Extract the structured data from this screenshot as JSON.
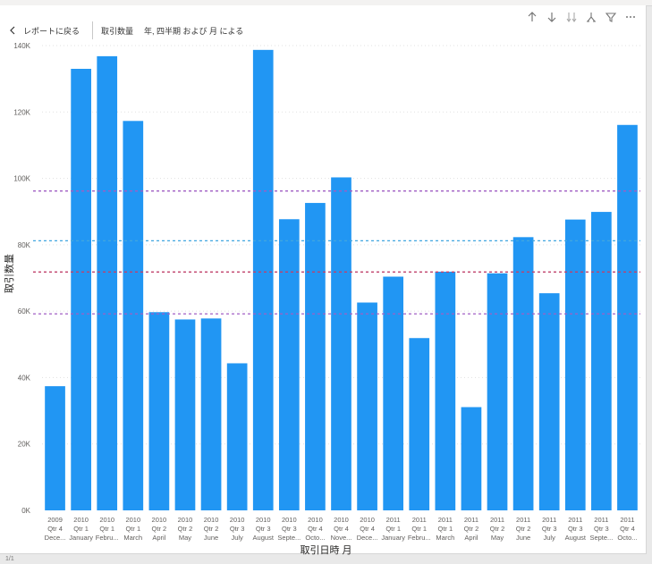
{
  "toolbar": {
    "back_label": "レポートに戻る",
    "crumb_1": "取引数量",
    "crumb_2": "年, 四半期 および 月 による"
  },
  "footer": {
    "page": "1/1"
  },
  "colors": {
    "bar": "#2196f3",
    "ref_purple": "#a05ec4",
    "ref_red": "#c0416b",
    "ref_blue": "#41a6e0",
    "grid": "#e1e1e1"
  },
  "icons": [
    "arrow-up-icon",
    "arrow-down-icon",
    "double-arrow-down-icon",
    "fork-icon",
    "filter-icon",
    "more-icon"
  ],
  "chart_data": {
    "type": "bar",
    "xlabel": "取引日時 月",
    "ylabel": "取引数量",
    "ylim": [
      0,
      140000
    ],
    "yticks": [
      "0K",
      "20K",
      "40K",
      "60K",
      "80K",
      "100K",
      "120K",
      "140K"
    ],
    "categories": [
      [
        "2009",
        "Qtr 4",
        "Dece..."
      ],
      [
        "2010",
        "Qtr 1",
        "January"
      ],
      [
        "2010",
        "Qtr 1",
        "Febru..."
      ],
      [
        "2010",
        "Qtr 1",
        "March"
      ],
      [
        "2010",
        "Qtr 2",
        "April"
      ],
      [
        "2010",
        "Qtr 2",
        "May"
      ],
      [
        "2010",
        "Qtr 2",
        "June"
      ],
      [
        "2010",
        "Qtr 3",
        "July"
      ],
      [
        "2010",
        "Qtr 3",
        "August"
      ],
      [
        "2010",
        "Qtr 3",
        "Septe..."
      ],
      [
        "2010",
        "Qtr 4",
        "Octo..."
      ],
      [
        "2010",
        "Qtr 4",
        "Nove..."
      ],
      [
        "2010",
        "Qtr 4",
        "Dece..."
      ],
      [
        "2011",
        "Qtr 1",
        "January"
      ],
      [
        "2011",
        "Qtr 1",
        "Febru..."
      ],
      [
        "2011",
        "Qtr 1",
        "March"
      ],
      [
        "2011",
        "Qtr 2",
        "April"
      ],
      [
        "2011",
        "Qtr 2",
        "May"
      ],
      [
        "2011",
        "Qtr 2",
        "June"
      ],
      [
        "2011",
        "Qtr 3",
        "July"
      ],
      [
        "2011",
        "Qtr 3",
        "August"
      ],
      [
        "2011",
        "Qtr 3",
        "Septe..."
      ],
      [
        "2011",
        "Qtr 4",
        "Octo..."
      ]
    ],
    "values": [
      37400,
      133000,
      136800,
      117300,
      59700,
      57500,
      57800,
      44300,
      138700,
      87700,
      92600,
      100300,
      62600,
      70400,
      51900,
      71900,
      31100,
      71400,
      82300,
      65400,
      87600,
      89900,
      116100
    ],
    "reference_lines": [
      {
        "value": 96200,
        "color": "#a05ec4"
      },
      {
        "value": 81200,
        "color": "#41a6e0"
      },
      {
        "value": 71800,
        "color": "#c0416b"
      },
      {
        "value": 59200,
        "color": "#a05ec4"
      }
    ],
    "grid": true,
    "legend": "none"
  }
}
